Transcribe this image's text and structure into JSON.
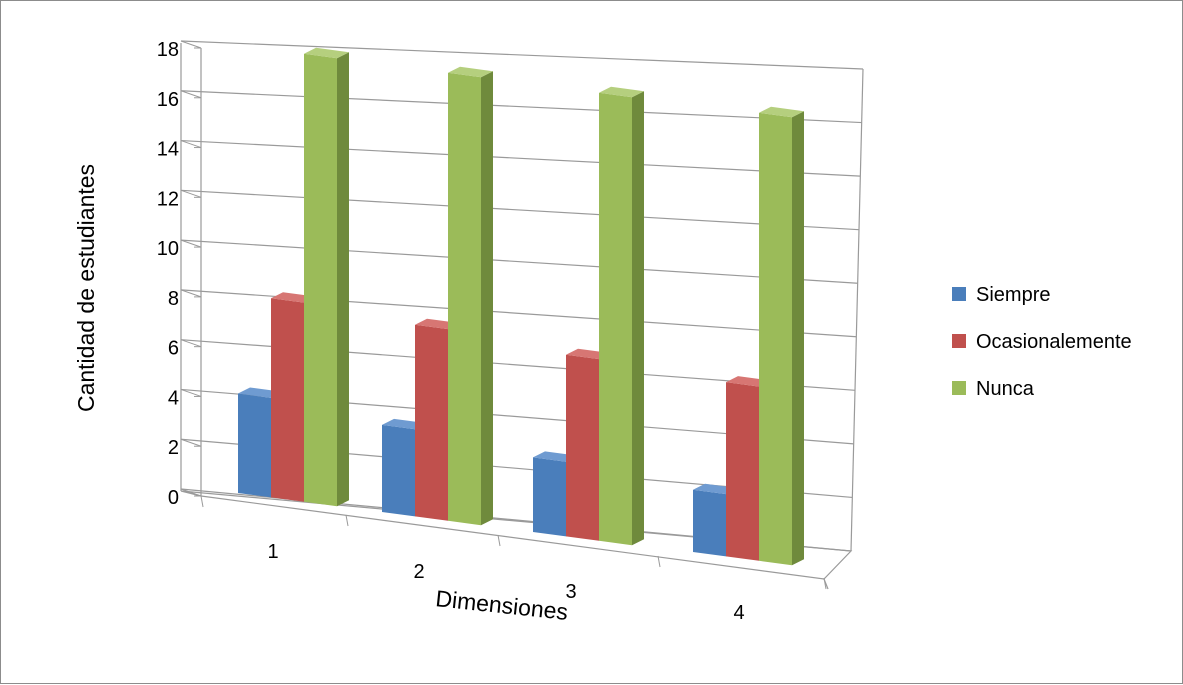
{
  "chart_data": {
    "type": "bar",
    "title": "",
    "xlabel": "Dimensiones",
    "ylabel": "Cantidad de estudiantes",
    "categories": [
      "1",
      "2",
      "3",
      "4"
    ],
    "ylim": [
      0,
      18
    ],
    "yticks": [
      "0",
      "2",
      "4",
      "6",
      "8",
      "10",
      "12",
      "14",
      "16",
      "18"
    ],
    "grid": true,
    "legend_position": "right",
    "series": [
      {
        "name": "Siempre",
        "values": [
          4,
          3.5,
          3,
          2.5
        ],
        "color": "#4a7ebb",
        "side": "#375f8f",
        "top": "#6f9bd1"
      },
      {
        "name": "Ocasionalemente",
        "values": [
          8,
          7.7,
          7.3,
          7
        ],
        "color": "#c0504d",
        "side": "#8f3532",
        "top": "#d77673"
      },
      {
        "name": "Nunca",
        "values": [
          18,
          18,
          18,
          18
        ],
        "color": "#9bbb59",
        "side": "#6f8a3c",
        "top": "#b5cf7e"
      }
    ]
  }
}
